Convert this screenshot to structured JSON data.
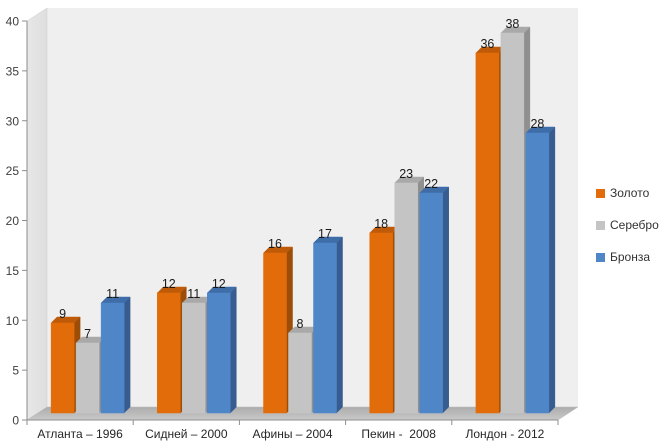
{
  "chart_data": {
    "type": "bar",
    "subtype": "3d-clustered-column",
    "title": "",
    "categories": [
      "Атланта – 1996",
      "Сидней – 2000",
      "Афины – 2004",
      "Пекин -  2008",
      "Лондон - 2012"
    ],
    "series": [
      {
        "key": "gold",
        "name": "Золото",
        "values": [
          9,
          12,
          16,
          18,
          36
        ],
        "color": "#E36C0A",
        "top_color": "#BF5B08",
        "side_color": "#9C4D07"
      },
      {
        "key": "silver",
        "name": "Серебро",
        "values": [
          7,
          11,
          8,
          23,
          38
        ],
        "color": "#C4C4C4",
        "top_color": "#A9A9A9",
        "side_color": "#8F8F8F"
      },
      {
        "key": "bronze",
        "name": "Бронза",
        "values": [
          11,
          12,
          17,
          22,
          28
        ],
        "color": "#4E86C8",
        "top_color": "#3E6DA8",
        "side_color": "#365C90"
      }
    ],
    "ylim": [
      0,
      40
    ],
    "yticks": [
      0,
      5,
      10,
      15,
      20,
      25,
      30,
      35,
      40
    ],
    "data_labels": true,
    "gridlines": false,
    "legend_position": "right"
  },
  "palette": {
    "background": "#FFFFFF",
    "back_wall": "#EFEFEF",
    "side_wall": "#DEDEDE",
    "side_wall_edge": "#CFCFCF",
    "floor_dark": "#ACACAC",
    "floor_light": "#C9C9C9",
    "axis_line": "#8E8E8E",
    "tick_label": "#3F3F3F",
    "category_label": "#262626",
    "data_label": "#1A1A1A",
    "legend_text": "#333333"
  }
}
